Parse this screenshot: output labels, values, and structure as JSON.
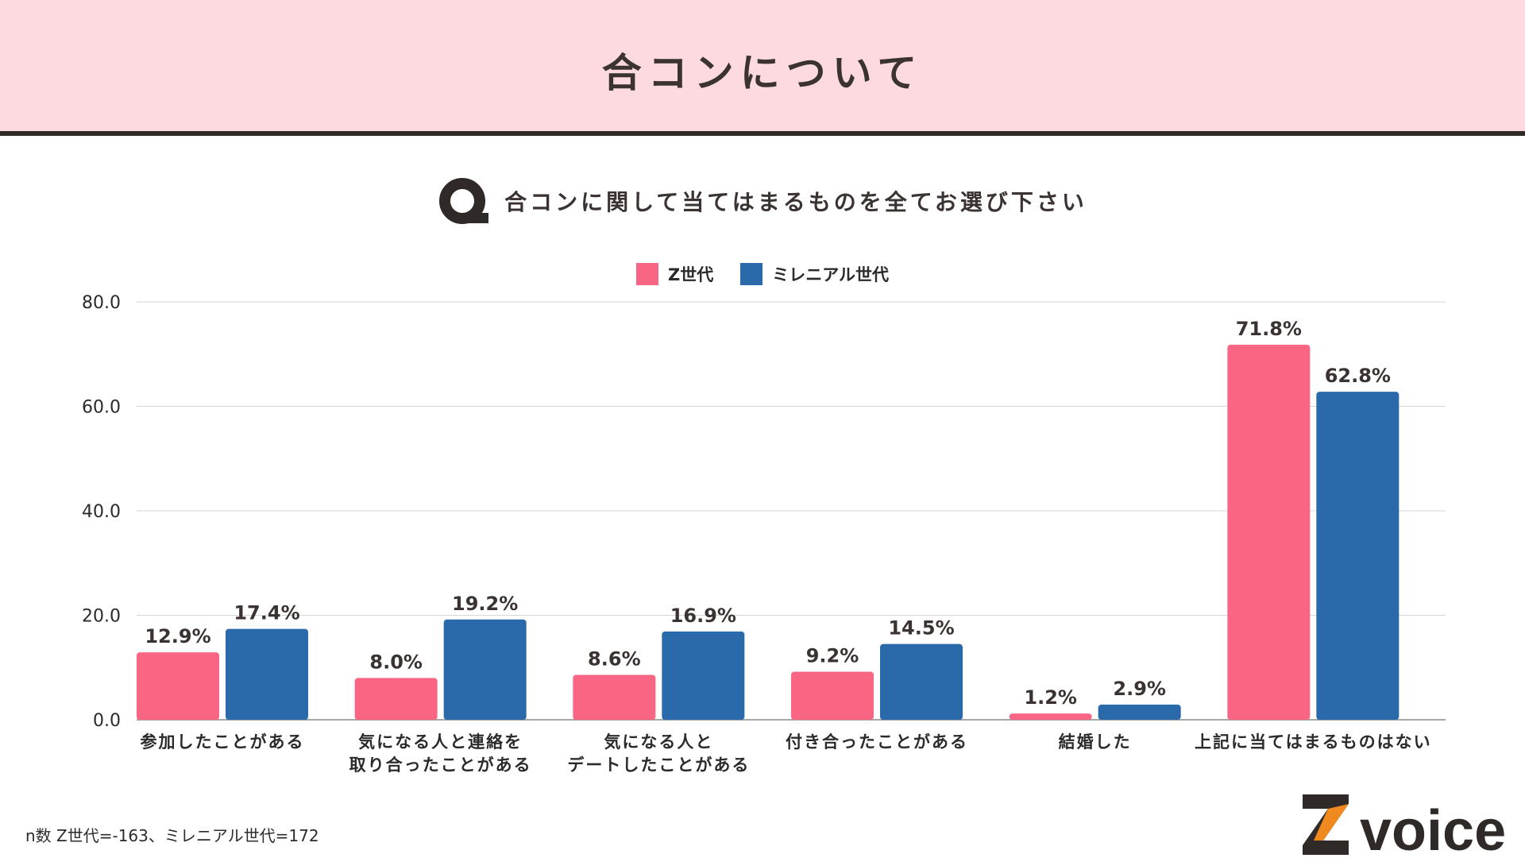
{
  "header": {
    "title": "合コンについて"
  },
  "question": {
    "text": "合コンに関して当てはまるものを全てお選び下さい"
  },
  "colors": {
    "header_bg": "#fdd9e0",
    "z_series": "#f96683",
    "millennial_series": "#2a69aa"
  },
  "chart_data": {
    "type": "bar",
    "categories": [
      [
        "参加したことがある"
      ],
      [
        "気になる人と連絡を",
        "取り合ったことがある"
      ],
      [
        "気になる人と",
        "デートしたことがある"
      ],
      [
        "付き合ったことがある"
      ],
      [
        "結婚した"
      ],
      [
        "上記に当てはまるものはない"
      ]
    ],
    "series": [
      {
        "name": "Z世代",
        "values": [
          12.9,
          8.0,
          8.6,
          9.2,
          1.2,
          71.8
        ],
        "labels": [
          "12.9%",
          "8.0%",
          "8.6%",
          "9.2%",
          "1.2%",
          "71.8%"
        ],
        "color": "#f96683"
      },
      {
        "name": "ミレニアル世代",
        "values": [
          17.4,
          19.2,
          16.9,
          14.5,
          2.9,
          62.8
        ],
        "labels": [
          "17.4%",
          "19.2%",
          "16.9%",
          "14.5%",
          "2.9%",
          "62.8%"
        ],
        "color": "#2a69aa"
      }
    ],
    "yticks": [
      "0.0",
      "20.0",
      "40.0",
      "60.0",
      "80.0"
    ],
    "ylim": [
      0,
      80
    ],
    "grid": true,
    "legend": "top-center"
  },
  "footnote": "n数 Z世代=-163、ミレニアル世代=172",
  "logo": {
    "text": "voice",
    "mark": "Z",
    "mark_color": "#2f2a28",
    "accent_color": "#f08a1e"
  }
}
